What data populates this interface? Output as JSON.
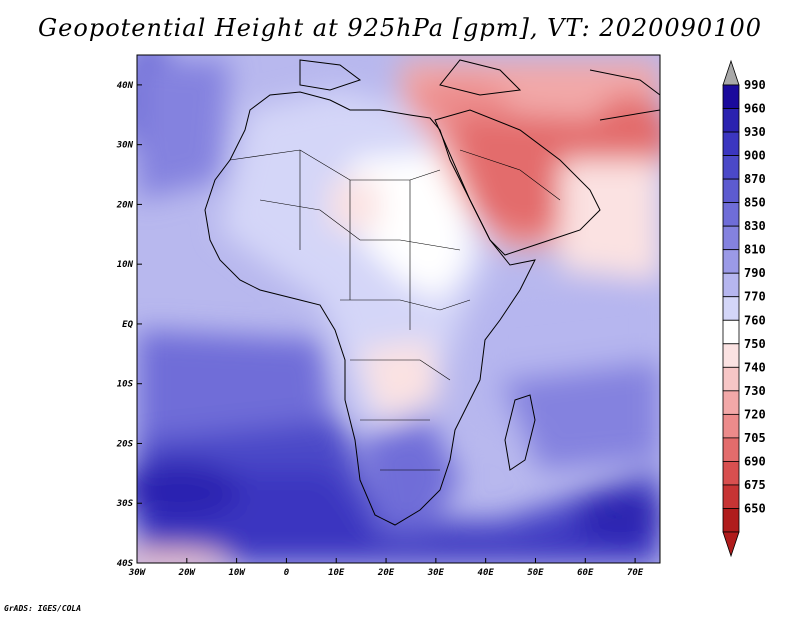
{
  "title": "Geopotential Height at 925hPa [gpm], VT: 2020090100",
  "footer": "GrADS: IGES/COLA",
  "map": {
    "lon_range": [
      -30,
      75
    ],
    "lat_range": [
      -40,
      45
    ],
    "lon_ticks": [
      {
        "lon": -30,
        "label": "30W"
      },
      {
        "lon": -20,
        "label": "20W"
      },
      {
        "lon": -10,
        "label": "10W"
      },
      {
        "lon": 0,
        "label": "0"
      },
      {
        "lon": 10,
        "label": "10E"
      },
      {
        "lon": 20,
        "label": "20E"
      },
      {
        "lon": 30,
        "label": "30E"
      },
      {
        "lon": 40,
        "label": "40E"
      },
      {
        "lon": 50,
        "label": "50E"
      },
      {
        "lon": 60,
        "label": "60E"
      },
      {
        "lon": 70,
        "label": "70E"
      }
    ],
    "lat_ticks": [
      {
        "lat": 40,
        "label": "40N"
      },
      {
        "lat": 30,
        "label": "30N"
      },
      {
        "lat": 20,
        "label": "20N"
      },
      {
        "lat": 10,
        "label": "10N"
      },
      {
        "lat": 0,
        "label": "EQ"
      },
      {
        "lat": -10,
        "label": "10S"
      },
      {
        "lat": -20,
        "label": "20S"
      },
      {
        "lat": -30,
        "label": "30S"
      },
      {
        "lat": -40,
        "label": "40S"
      }
    ]
  },
  "colorbar": {
    "levels": [
      "990",
      "960",
      "930",
      "900",
      "870",
      "850",
      "830",
      "810",
      "790",
      "770",
      "760",
      "750",
      "740",
      "730",
      "720",
      "705",
      "690",
      "675",
      "650"
    ],
    "colors": [
      "#1a0a9c",
      "#2b22b0",
      "#3b36c0",
      "#4b49c8",
      "#5d5bd0",
      "#6f6dd8",
      "#8482df",
      "#9b9ae7",
      "#b6b6ef",
      "#d4d6f8",
      "#ffffff",
      "#fbe2e2",
      "#f7c6c6",
      "#f2a8a8",
      "#ec8b8b",
      "#e36c6c",
      "#d84f4f",
      "#c73434",
      "#b01c1c"
    ],
    "top_arrow_color": "#a8a8a8",
    "bottom_arrow_color": "#b01c1c"
  }
}
